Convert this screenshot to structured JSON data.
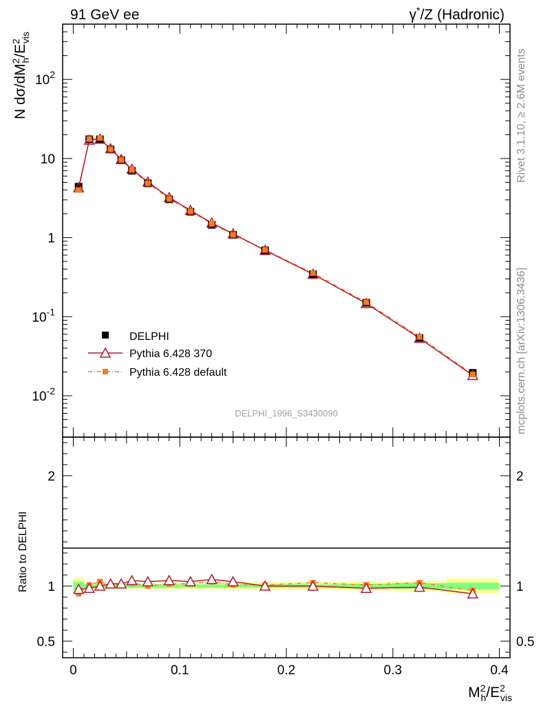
{
  "chart_data": {
    "type": "line",
    "header": {
      "left": "91 GeV ee",
      "right_prefix": "γ",
      "right_sup": "*",
      "right_suffix": "/Z (Hadronic)"
    },
    "side_labels": {
      "rivet": "Rivet 3.1.10, ≥ 2.6M events",
      "mcplots": "mcplots.cern.ch [arXiv:1306.3436]"
    },
    "analysis_label": "DELPHI_1996_S3430090",
    "ylabel_main": {
      "p1": "N dσ/dM",
      "sup1": "2",
      "sub1": "h",
      "p2": "/E",
      "sup2": "2",
      "sub2": "vis"
    },
    "ylabel_ratio": "Ratio to DELPHI",
    "xlabel": {
      "p1": "M",
      "sup1": "2",
      "sub1": "h",
      "p2": "/E",
      "sup2": "2",
      "sub2": "vis"
    },
    "xlim": [
      -0.01,
      0.41
    ],
    "ylim_main": [
      0.003,
      500
    ],
    "ylim_ratio": [
      0.35,
      2.35
    ],
    "x_ticks": [
      "0",
      "0.1",
      "0.2",
      "0.3",
      "0.4"
    ],
    "y_ticks_main": [
      {
        "mant": "10",
        "exp": "-2",
        "value": 0.01
      },
      {
        "mant": "10",
        "exp": "-1",
        "value": 0.1
      },
      {
        "mant": "1",
        "exp": "",
        "value": 1
      },
      {
        "mant": "10",
        "exp": "",
        "value": 10
      },
      {
        "mant": "10",
        "exp": "2",
        "value": 100
      }
    ],
    "y_ticks_ratio": [
      "0.5",
      "1",
      "2"
    ],
    "x": [
      0.005,
      0.015,
      0.025,
      0.035,
      0.045,
      0.055,
      0.07,
      0.09,
      0.11,
      0.13,
      0.15,
      0.18,
      0.225,
      0.275,
      0.325,
      0.375
    ],
    "x_bins": [
      [
        0.0,
        0.01
      ],
      [
        0.01,
        0.02
      ],
      [
        0.02,
        0.03
      ],
      [
        0.03,
        0.04
      ],
      [
        0.04,
        0.05
      ],
      [
        0.05,
        0.06
      ],
      [
        0.06,
        0.08
      ],
      [
        0.08,
        0.1
      ],
      [
        0.1,
        0.12
      ],
      [
        0.12,
        0.14
      ],
      [
        0.14,
        0.16
      ],
      [
        0.16,
        0.2
      ],
      [
        0.2,
        0.25
      ],
      [
        0.25,
        0.3
      ],
      [
        0.3,
        0.35
      ],
      [
        0.35,
        0.4
      ]
    ],
    "series": [
      {
        "name": "DELPHI",
        "style": "data",
        "color": "#000000",
        "values": [
          4.4,
          17.5,
          17.5,
          13.0,
          9.5,
          7.0,
          4.85,
          3.05,
          2.12,
          1.45,
          1.08,
          0.69,
          0.345,
          0.15,
          0.054,
          0.0195
        ],
        "ratio": [
          1,
          1,
          1,
          1,
          1,
          1,
          1,
          1,
          1,
          1,
          1,
          1,
          1,
          1,
          1,
          1
        ],
        "band_green": [
          0.04,
          0.015,
          0.015,
          0.015,
          0.015,
          0.015,
          0.015,
          0.015,
          0.015,
          0.015,
          0.015,
          0.015,
          0.015,
          0.02,
          0.025,
          0.03
        ],
        "band_yellow": [
          0.08,
          0.025,
          0.025,
          0.025,
          0.025,
          0.025,
          0.025,
          0.03,
          0.03,
          0.03,
          0.035,
          0.035,
          0.035,
          0.04,
          0.045,
          0.07
        ]
      },
      {
        "name": "Pythia 6.428 370",
        "style": "triangle-line",
        "color": "#b2182b",
        "values": [
          4.27,
          17.1,
          17.6,
          13.3,
          9.75,
          7.35,
          5.06,
          3.21,
          2.21,
          1.53,
          1.12,
          0.69,
          0.345,
          0.147,
          0.0535,
          0.0181
        ],
        "ratio": [
          0.97,
          0.98,
          1.0,
          1.02,
          1.02,
          1.05,
          1.04,
          1.05,
          1.04,
          1.06,
          1.04,
          1.0,
          1.0,
          0.98,
          0.99,
          0.93
        ]
      },
      {
        "name": "Pythia 6.428 default",
        "style": "square-dashdot",
        "color": "#f47c20",
        "values": [
          4.0,
          17.6,
          18.2,
          13.1,
          9.6,
          7.2,
          4.87,
          3.1,
          2.16,
          1.5,
          1.09,
          0.7,
          0.355,
          0.152,
          0.0555,
          0.0186
        ],
        "ratio": [
          0.93,
          1.01,
          1.04,
          1.01,
          1.01,
          1.03,
          1.0,
          1.02,
          1.02,
          1.04,
          1.01,
          1.01,
          1.03,
          1.01,
          1.03,
          0.96
        ]
      }
    ]
  }
}
